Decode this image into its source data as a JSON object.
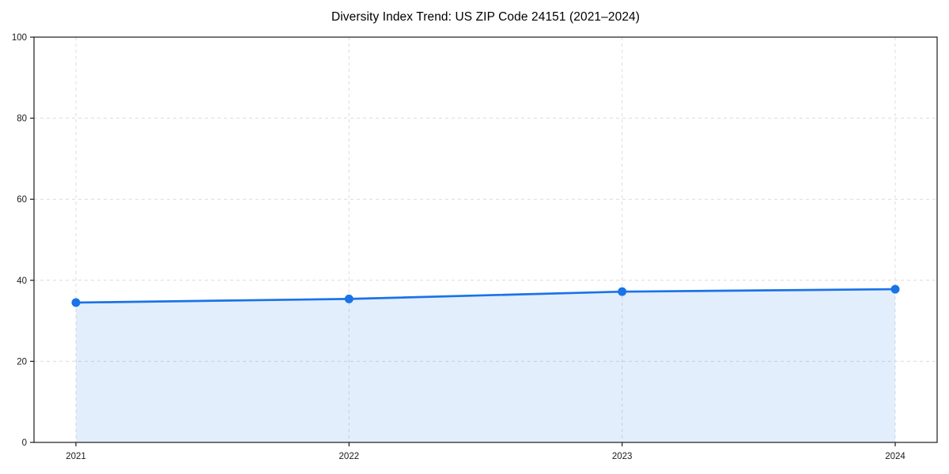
{
  "chart_data": {
    "type": "area",
    "title": "Diversity Index Trend: US ZIP Code 24151 (2021–2024)",
    "categories": [
      "2021",
      "2022",
      "2023",
      "2024"
    ],
    "values": [
      34.5,
      35.4,
      37.2,
      37.8
    ],
    "xlabel": "",
    "ylabel": "",
    "ylim": [
      0,
      100
    ],
    "yticks": [
      0,
      20,
      40,
      60,
      80,
      100
    ],
    "grid": "dashed-both-axes",
    "legend": "none",
    "markers": "circle",
    "colors": {
      "line": "#1a73e8",
      "marker": "#1a73e8",
      "fill": "rgba(26,115,232,0.12)",
      "grid": "#dcdcdc",
      "spine": "#1a1a1a",
      "text": "#1a1a1a"
    }
  }
}
